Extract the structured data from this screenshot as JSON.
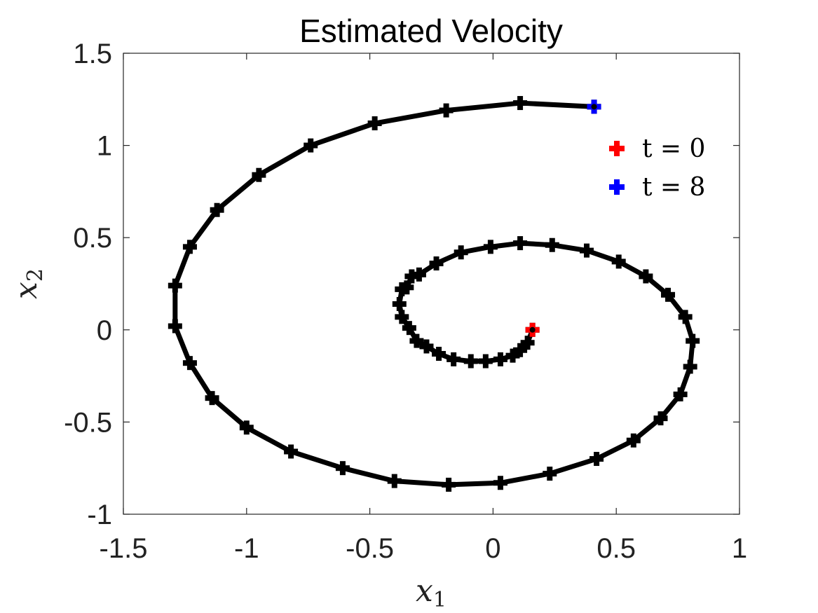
{
  "chart_data": {
    "type": "line",
    "title": "Estimated Velocity",
    "xlabel": "x",
    "xlabel_sub": "1",
    "ylabel": "x",
    "ylabel_sub": "2",
    "xlim": [
      -1.5,
      1
    ],
    "ylim": [
      -1,
      1.5
    ],
    "xticks": [
      -1.5,
      -1,
      -0.5,
      0,
      0.5,
      1
    ],
    "xtick_labels": [
      "-1.5",
      "-1",
      "-0.5",
      "0",
      "0.5",
      "1"
    ],
    "yticks": [
      -1,
      -0.5,
      0,
      0.5,
      1,
      1.5
    ],
    "ytick_labels": [
      "-1",
      "-0.5",
      "0",
      "0.5",
      "1",
      "1.5"
    ],
    "grid": false,
    "legend_position": "top-right",
    "legend": [
      {
        "label": "t = 0",
        "color": "#ff0000"
      },
      {
        "label": "t = 8",
        "color": "#0000ff"
      }
    ],
    "line_color": "#000000",
    "marker_color": "#000000",
    "series": [
      {
        "x": [
          0.16,
          0.14,
          0.11,
          0.08,
          0.03,
          -0.03,
          -0.09,
          -0.16,
          -0.22,
          -0.27,
          -0.31,
          -0.34,
          -0.37,
          -0.38,
          -0.37,
          -0.35,
          -0.33,
          -0.3,
          -0.23,
          -0.13,
          -0.01,
          0.11,
          0.24,
          0.38,
          0.51,
          0.62,
          0.71,
          0.78,
          0.81,
          0.8,
          0.76,
          0.68,
          0.57,
          0.42,
          0.23,
          0.03,
          -0.18,
          -0.4,
          -0.61,
          -0.82,
          -1.0,
          -1.14,
          -1.23,
          -1.29,
          -1.29,
          -1.23,
          -1.12,
          -0.95,
          -0.74,
          -0.48,
          -0.19,
          0.11,
          0.41
        ],
        "y": [
          0.0,
          -0.07,
          -0.11,
          -0.14,
          -0.16,
          -0.17,
          -0.17,
          -0.16,
          -0.13,
          -0.09,
          -0.06,
          0.01,
          0.07,
          0.14,
          0.22,
          0.23,
          0.29,
          0.3,
          0.36,
          0.42,
          0.45,
          0.47,
          0.46,
          0.43,
          0.37,
          0.29,
          0.19,
          0.07,
          -0.06,
          -0.2,
          -0.35,
          -0.48,
          -0.6,
          -0.7,
          -0.78,
          -0.83,
          -0.84,
          -0.82,
          -0.75,
          -0.66,
          -0.53,
          -0.37,
          -0.18,
          0.02,
          0.24,
          0.45,
          0.65,
          0.84,
          1.0,
          1.12,
          1.19,
          1.23,
          1.21
        ]
      }
    ],
    "start_point": {
      "x": 0.16,
      "y": 0.0
    },
    "end_point": {
      "x": 0.41,
      "y": 1.21
    }
  }
}
